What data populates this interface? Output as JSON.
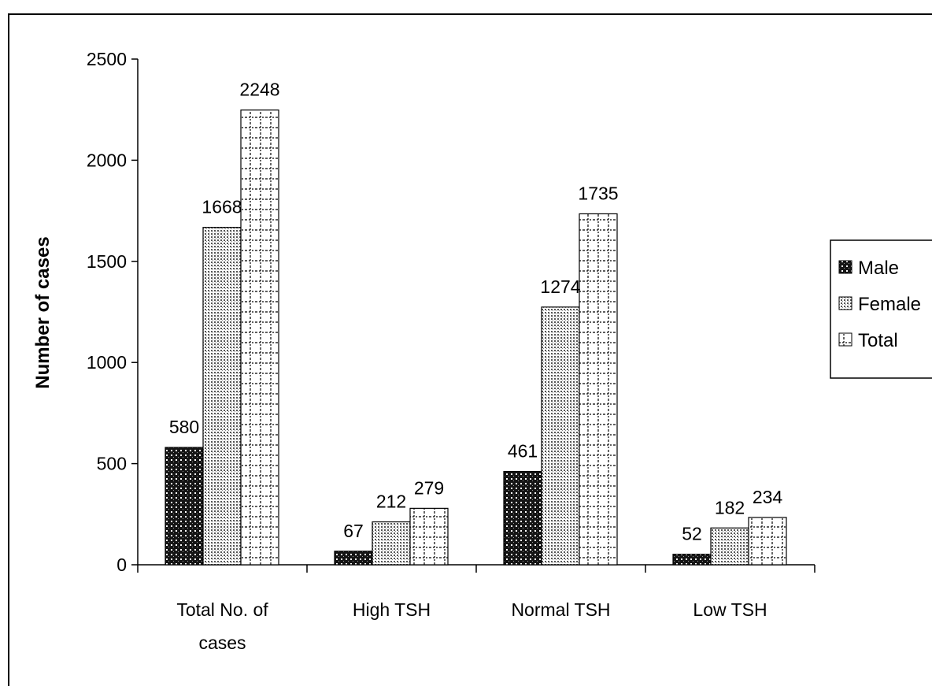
{
  "chart_data": {
    "type": "bar",
    "title": "",
    "xlabel": "",
    "ylabel": "Number of cases",
    "ylim": [
      0,
      2500
    ],
    "yticks": [
      0,
      500,
      1000,
      1500,
      2000,
      2500
    ],
    "grid": false,
    "legend_position": "right",
    "categories": [
      [
        "Total No. of",
        "cases"
      ],
      [
        "High TSH"
      ],
      [
        "Normal TSH"
      ],
      [
        "Low TSH"
      ]
    ],
    "series": [
      {
        "name": "Male",
        "values": [
          580,
          67,
          461,
          52
        ],
        "pattern": "dark-dots"
      },
      {
        "name": "Female",
        "values": [
          1668,
          212,
          1274,
          182
        ],
        "pattern": "light-dots"
      },
      {
        "name": "Total",
        "values": [
          2248,
          279,
          1735,
          234
        ],
        "pattern": "dotted-grid"
      }
    ],
    "colors": {
      "bar_dark": "#1a1a1a",
      "axis": "#000000",
      "background": "#ffffff"
    }
  }
}
